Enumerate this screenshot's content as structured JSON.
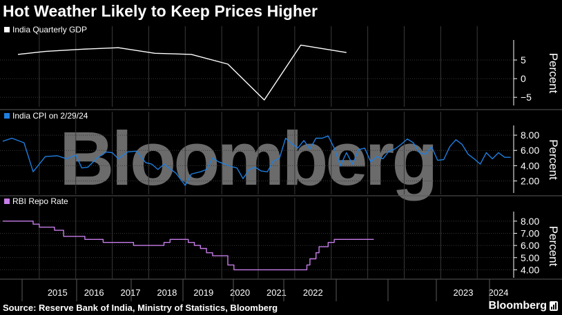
{
  "title": "Hot Weather Likely to Keep Prices Higher",
  "source": "Source: Reserve Bank of India, Ministry of Statistics, Bloomberg",
  "brand": "Bloomberg",
  "watermark": "Bloomberg",
  "colors": {
    "background": "#000000",
    "gdp": "#ffffff",
    "cpi": "#1f7fe0",
    "repo": "#c77dea",
    "grid": "#3a3a3a",
    "axis": "#ffffff"
  },
  "chart_data": [
    {
      "type": "line",
      "legend": "India Quarterly GDP",
      "ylabel": "Percent",
      "yticks": [
        -5,
        0,
        5
      ],
      "ylim": [
        -7,
        10
      ],
      "points": [
        [
          "2014-06",
          6.5
        ],
        [
          "2015-03",
          7.3
        ],
        [
          "2016-03",
          7.9
        ],
        [
          "2017-03",
          8.3
        ],
        [
          "2018-03",
          6.8
        ],
        [
          "2019-03",
          6.5
        ],
        [
          "2020-03",
          3.9
        ],
        [
          "2021-03",
          -5.7
        ],
        [
          "2022-03",
          9.0
        ],
        [
          "2023-06",
          7.0
        ]
      ]
    },
    {
      "type": "line",
      "legend": "India CPI on 2/29/24",
      "ylabel": "Percent",
      "yticks": [
        "8.00",
        "6.00",
        "4.00",
        "2.00"
      ],
      "ylim": [
        0.6,
        9.0
      ],
      "points": [
        [
          "2014-01",
          7.2
        ],
        [
          "2014-04",
          7.6
        ],
        [
          "2014-08",
          7.0
        ],
        [
          "2014-11",
          3.2
        ],
        [
          "2015-03",
          5.2
        ],
        [
          "2015-07",
          5.3
        ],
        [
          "2015-10",
          4.9
        ],
        [
          "2016-01",
          5.4
        ],
        [
          "2016-03",
          3.7
        ],
        [
          "2016-05",
          3.8
        ],
        [
          "2016-08",
          5.0
        ],
        [
          "2016-11",
          5.8
        ],
        [
          "2017-01",
          5.7
        ],
        [
          "2017-03",
          4.9
        ],
        [
          "2017-06",
          5.8
        ],
        [
          "2017-09",
          5.9
        ],
        [
          "2017-12",
          4.4
        ],
        [
          "2018-02",
          4.2
        ],
        [
          "2018-04",
          3.5
        ],
        [
          "2018-06",
          4.2
        ],
        [
          "2018-08",
          3.6
        ],
        [
          "2018-10",
          3.0
        ],
        [
          "2019-01",
          1.4
        ],
        [
          "2019-03",
          2.9
        ],
        [
          "2019-06",
          3.2
        ],
        [
          "2019-08",
          3.5
        ],
        [
          "2019-10",
          5.0
        ],
        [
          "2019-12",
          4.5
        ],
        [
          "2020-02",
          4.2
        ],
        [
          "2020-04",
          3.9
        ],
        [
          "2020-06",
          3.7
        ],
        [
          "2020-08",
          2.3
        ],
        [
          "2020-10",
          3.5
        ],
        [
          "2020-12",
          3.8
        ],
        [
          "2021-02",
          3.3
        ],
        [
          "2021-04",
          3.2
        ],
        [
          "2021-06",
          4.6
        ],
        [
          "2021-08",
          5.0
        ],
        [
          "2021-10",
          7.6
        ],
        [
          "2021-12",
          6.9
        ],
        [
          "2022-02",
          6.3
        ],
        [
          "2022-04",
          7.3
        ],
        [
          "2022-06",
          6.2
        ],
        [
          "2022-08",
          7.6
        ],
        [
          "2022-10",
          7.6
        ],
        [
          "2022-12",
          7.9
        ],
        [
          "2023-02",
          6.3
        ],
        [
          "2023-04",
          4.0
        ],
        [
          "2023-06",
          5.7
        ],
        [
          "2023-08",
          4.2
        ],
        [
          "2023-10",
          6.1
        ],
        [
          "2023-12",
          6.3
        ],
        [
          "2024-02",
          4.5
        ],
        [
          "2024-04",
          5.2
        ],
        [
          "2024-06",
          4.9
        ],
        [
          "2024-08",
          5.9
        ],
        [
          "2024-10",
          6.2
        ],
        [
          "2024-12",
          6.8
        ],
        [
          "2025-02",
          7.5
        ],
        [
          "2025-04",
          7.0
        ],
        [
          "2025-06",
          5.7
        ],
        [
          "2025-08",
          5.5
        ],
        [
          "2025-10",
          6.5
        ],
        [
          "2025-12",
          4.7
        ],
        [
          "2026-02",
          4.8
        ],
        [
          "2026-04",
          6.5
        ],
        [
          "2026-06",
          7.4
        ],
        [
          "2026-08",
          6.8
        ],
        [
          "2026-10",
          5.5
        ],
        [
          "2026-12",
          4.9
        ],
        [
          "2027-02",
          4.2
        ],
        [
          "2027-04",
          5.7
        ],
        [
          "2027-06",
          4.9
        ],
        [
          "2027-08",
          5.7
        ],
        [
          "2027-10",
          5.1
        ],
        [
          "2027-12",
          5.1
        ]
      ]
    },
    {
      "type": "line",
      "legend": "RBI Repo Rate",
      "ylabel": "Percent",
      "yticks": [
        "8.00",
        "7.00",
        "6.00",
        "5.00",
        "4.00"
      ],
      "ylim": [
        3.4,
        8.5
      ],
      "points": [
        [
          "2014-01",
          8.0
        ],
        [
          "2014-11",
          8.0
        ],
        [
          "2014-11",
          7.75
        ],
        [
          "2015-01",
          7.75
        ],
        [
          "2015-01",
          7.5
        ],
        [
          "2015-06",
          7.5
        ],
        [
          "2015-06",
          7.25
        ],
        [
          "2015-09",
          7.25
        ],
        [
          "2015-09",
          6.75
        ],
        [
          "2016-04",
          6.75
        ],
        [
          "2016-04",
          6.5
        ],
        [
          "2016-10",
          6.5
        ],
        [
          "2016-10",
          6.25
        ],
        [
          "2017-08",
          6.25
        ],
        [
          "2017-08",
          6.0
        ],
        [
          "2018-06",
          6.0
        ],
        [
          "2018-06",
          6.25
        ],
        [
          "2018-08",
          6.25
        ],
        [
          "2018-08",
          6.5
        ],
        [
          "2019-02",
          6.5
        ],
        [
          "2019-02",
          6.25
        ],
        [
          "2019-04",
          6.25
        ],
        [
          "2019-04",
          6.0
        ],
        [
          "2019-06",
          6.0
        ],
        [
          "2019-06",
          5.75
        ],
        [
          "2019-08",
          5.75
        ],
        [
          "2019-08",
          5.4
        ],
        [
          "2019-10",
          5.4
        ],
        [
          "2019-10",
          5.15
        ],
        [
          "2020-03",
          5.15
        ],
        [
          "2020-03",
          4.4
        ],
        [
          "2020-05",
          4.4
        ],
        [
          "2020-05",
          4.0
        ],
        [
          "2022-05",
          4.0
        ],
        [
          "2022-05",
          4.4
        ],
        [
          "2022-06",
          4.4
        ],
        [
          "2022-06",
          4.9
        ],
        [
          "2022-08",
          4.9
        ],
        [
          "2022-08",
          5.4
        ],
        [
          "2022-09",
          5.4
        ],
        [
          "2022-09",
          5.9
        ],
        [
          "2022-12",
          5.9
        ],
        [
          "2022-12",
          6.25
        ],
        [
          "2023-02",
          6.25
        ],
        [
          "2023-02",
          6.5
        ],
        [
          "2024-03",
          6.5
        ]
      ]
    }
  ],
  "x_axis": {
    "labels": [
      "2015",
      "2016",
      "2017",
      "2018",
      "2019",
      "2020",
      "2021",
      "2022",
      "2023",
      "2024"
    ]
  }
}
